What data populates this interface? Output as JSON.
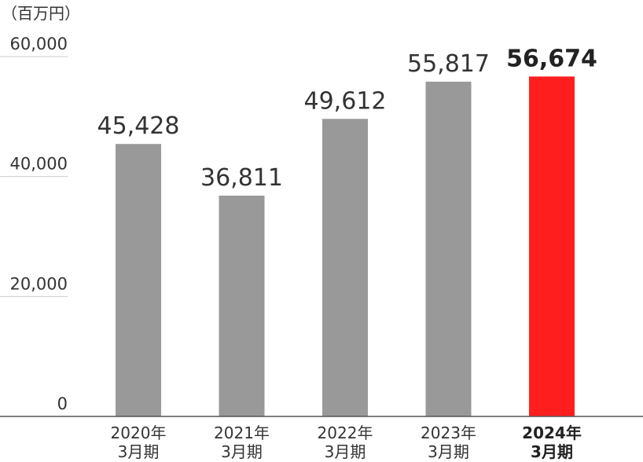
{
  "chart_data": {
    "type": "bar",
    "unit_label": "（百万円）",
    "categories": [
      [
        "2020年",
        "3月期"
      ],
      [
        "2021年",
        "3月期"
      ],
      [
        "2022年",
        "3月期"
      ],
      [
        "2023年",
        "3月期"
      ],
      [
        "2024年",
        "3月期"
      ]
    ],
    "values": [
      45428,
      36811,
      49612,
      55817,
      56674
    ],
    "value_labels": [
      "45,428",
      "36,811",
      "49,612",
      "55,817",
      "56,674"
    ],
    "highlight_index": 4,
    "colors": {
      "bar": "#999999",
      "highlight": "#ff1e1e",
      "gridline": "#cccccc",
      "baseline": "#555555"
    },
    "ylim": [
      0,
      60000
    ],
    "yticks": [
      0,
      20000,
      40000,
      60000
    ],
    "ytick_labels": [
      "0",
      "20,000",
      "40,000",
      "60,000"
    ],
    "grid": true
  }
}
